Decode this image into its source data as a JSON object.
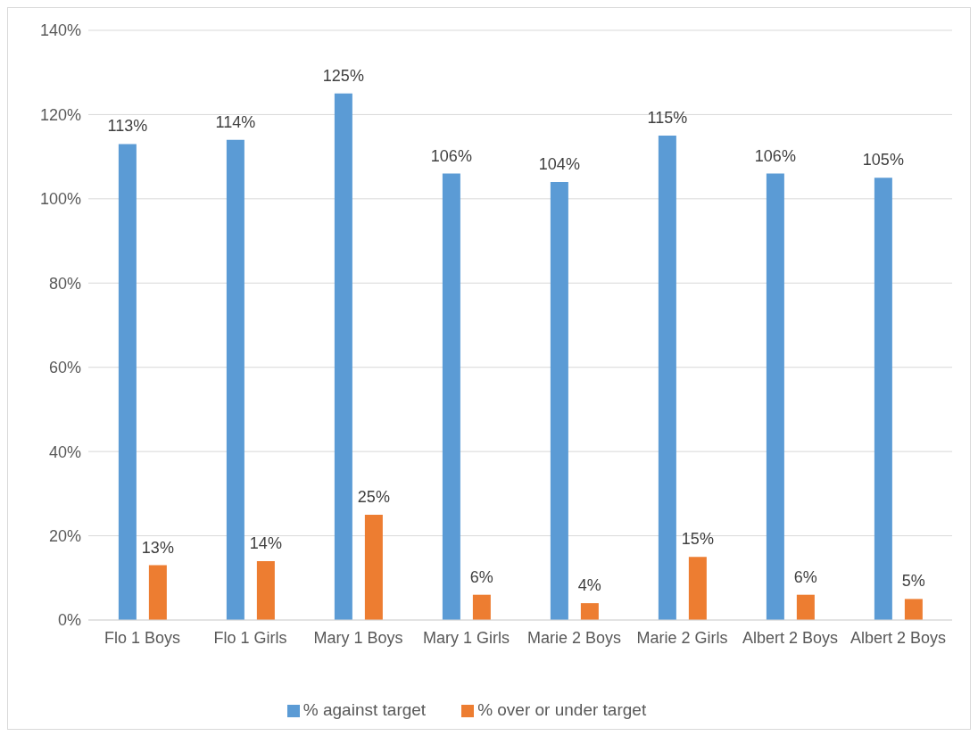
{
  "chart_data": {
    "type": "bar",
    "categories": [
      "Flo 1 Boys",
      "Flo 1 Girls",
      "Mary 1 Boys",
      "Mary 1 Girls",
      "Marie 2 Boys",
      "Marie 2 Girls",
      "Albert 2 Boys",
      "Albert 2 Boys"
    ],
    "series": [
      {
        "name": "% against target",
        "color": "#5b9bd5",
        "values": [
          113,
          114,
          125,
          106,
          104,
          115,
          106,
          105
        ],
        "value_labels": [
          "113%",
          "114%",
          "125%",
          "106%",
          "104%",
          "115%",
          "106%",
          "105%"
        ]
      },
      {
        "name": "% over or under target",
        "color": "#ed7d31",
        "values": [
          13,
          14,
          25,
          6,
          4,
          15,
          6,
          5
        ],
        "value_labels": [
          "13%",
          "14%",
          "25%",
          "6%",
          "4%",
          "15%",
          "6%",
          "5%"
        ]
      }
    ],
    "ylim": [
      0,
      140
    ],
    "yticks": [
      {
        "value": 0,
        "label": "0%"
      },
      {
        "value": 20,
        "label": "20%"
      },
      {
        "value": 40,
        "label": "40%"
      },
      {
        "value": 60,
        "label": "60%"
      },
      {
        "value": 80,
        "label": "80%"
      },
      {
        "value": 100,
        "label": "100%"
      },
      {
        "value": 120,
        "label": "120%"
      },
      {
        "value": 140,
        "label": "140%"
      }
    ],
    "grid": "y",
    "legend": "bottom"
  }
}
